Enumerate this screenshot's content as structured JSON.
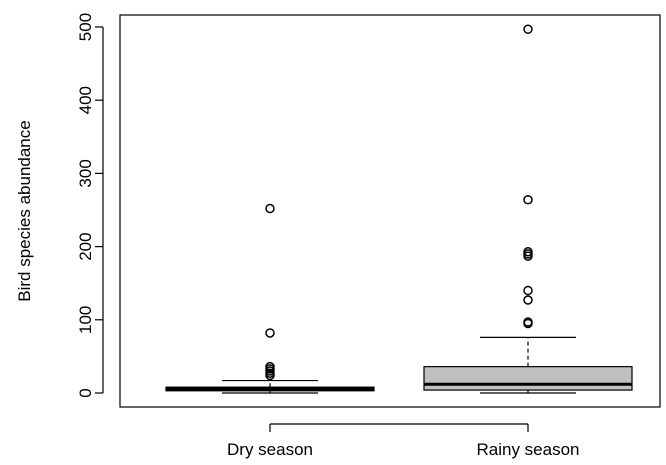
{
  "chart_data": {
    "type": "boxplot",
    "title": "",
    "xlabel": "",
    "ylabel": "Bird species abundance",
    "ylim": [
      -18,
      515
    ],
    "yticks": [
      0,
      100,
      200,
      300,
      400,
      500
    ],
    "yticklabels": [
      "0",
      "100",
      "200",
      "300",
      "400",
      "500"
    ],
    "categories": [
      "Dry season",
      "Rainy season"
    ],
    "grid": false,
    "legend": "none",
    "boxes": [
      {
        "name": "Dry season",
        "fill": "#000000",
        "whisker_low": 0,
        "q1": 3,
        "median": 5,
        "q3": 8,
        "whisker_high": 17,
        "outliers": [
          24,
          27,
          30,
          33,
          36,
          82,
          252
        ]
      },
      {
        "name": "Rainy season",
        "fill": "#c0c0c0",
        "whisker_low": 0,
        "q1": 4,
        "median": 12,
        "q3": 36,
        "whisker_high": 76,
        "outliers": [
          95,
          97,
          127,
          140,
          187,
          190,
          193,
          264,
          497
        ]
      }
    ]
  }
}
